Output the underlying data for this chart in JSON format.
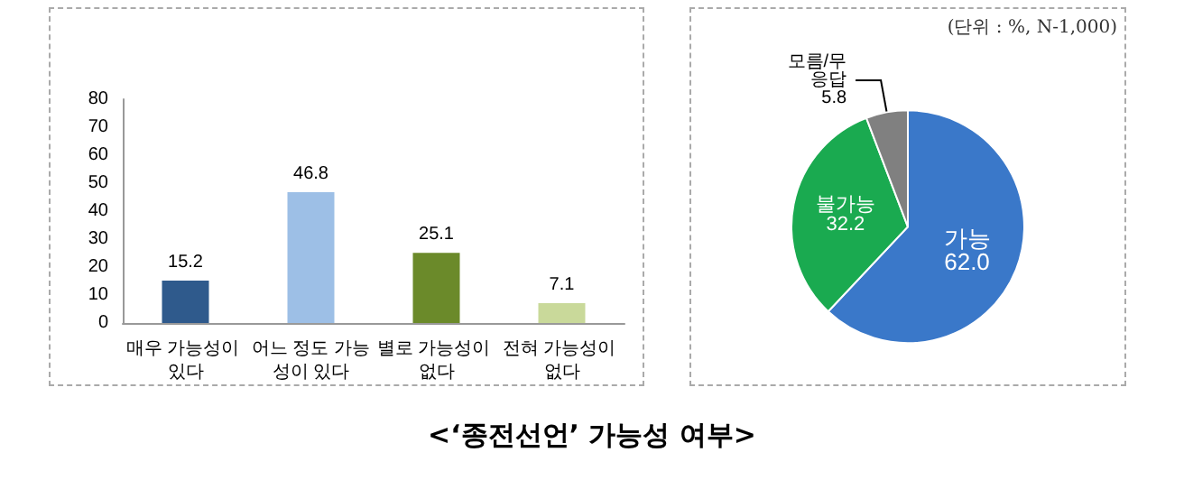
{
  "chart_data": [
    {
      "type": "bar",
      "title": "<‘종전선언’ 가능성 여부>",
      "categories": [
        "매우 가능성이 있다",
        "어느 정도 가능성이 있다",
        "별로 가능성이 없다",
        "전혀 가능성이 없다"
      ],
      "values": [
        15.2,
        46.8,
        25.1,
        7.1
      ],
      "colors": [
        "#2f5a8c",
        "#9dbfe6",
        "#6b8a2a",
        "#c9d99a"
      ],
      "ylim": [
        0,
        80
      ],
      "yticks": [
        0,
        10,
        20,
        30,
        40,
        50,
        60,
        70,
        80
      ],
      "grid": false,
      "data_labels": true,
      "legend": false
    },
    {
      "type": "pie",
      "categories": [
        "가능",
        "불가능",
        "모름/무응답"
      ],
      "values": [
        62.0,
        32.2,
        5.8
      ],
      "value_labels": [
        "62.0",
        "32.2",
        "5.8"
      ],
      "colors": [
        "#3a78c9",
        "#1aaa50",
        "#808080"
      ],
      "legend": false,
      "annotations": [
        "(단위 : %, N-1,000)"
      ]
    }
  ]
}
